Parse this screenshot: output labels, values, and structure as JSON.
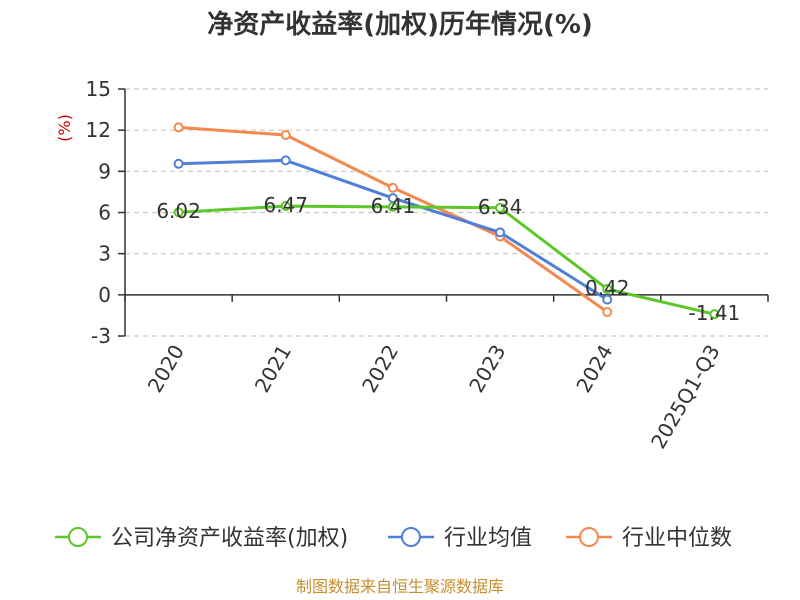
{
  "chart_data": {
    "type": "line",
    "title": "净资产收益率(加权)历年情况(%)",
    "ylabel": "(%)",
    "xlabel": "",
    "categories": [
      "2020",
      "2021",
      "2022",
      "2023",
      "2024",
      "2025Q1-Q3"
    ],
    "ylim": [
      -3,
      15
    ],
    "yticks": [
      15,
      12,
      9,
      6,
      3,
      0,
      -3
    ],
    "grid": true,
    "legend_position": "bottom",
    "series": [
      {
        "name": "公司净资产收益率(加权)",
        "color": "#5dc729",
        "values": [
          6.02,
          6.47,
          6.41,
          6.34,
          0.42,
          -1.41
        ],
        "labels": [
          "6.02",
          "6.47",
          "6.41",
          "6.34",
          "0.42",
          "-1.41"
        ]
      },
      {
        "name": "行业均值",
        "color": "#4f7fd6",
        "values": [
          9.55,
          9.8,
          7.05,
          4.55,
          -0.35,
          null
        ]
      },
      {
        "name": "行业中位数",
        "color": "#f5884f",
        "values": [
          12.2,
          11.65,
          7.8,
          4.25,
          -1.25,
          null
        ]
      }
    ]
  },
  "source": "制图数据来自恒生聚源数据库"
}
